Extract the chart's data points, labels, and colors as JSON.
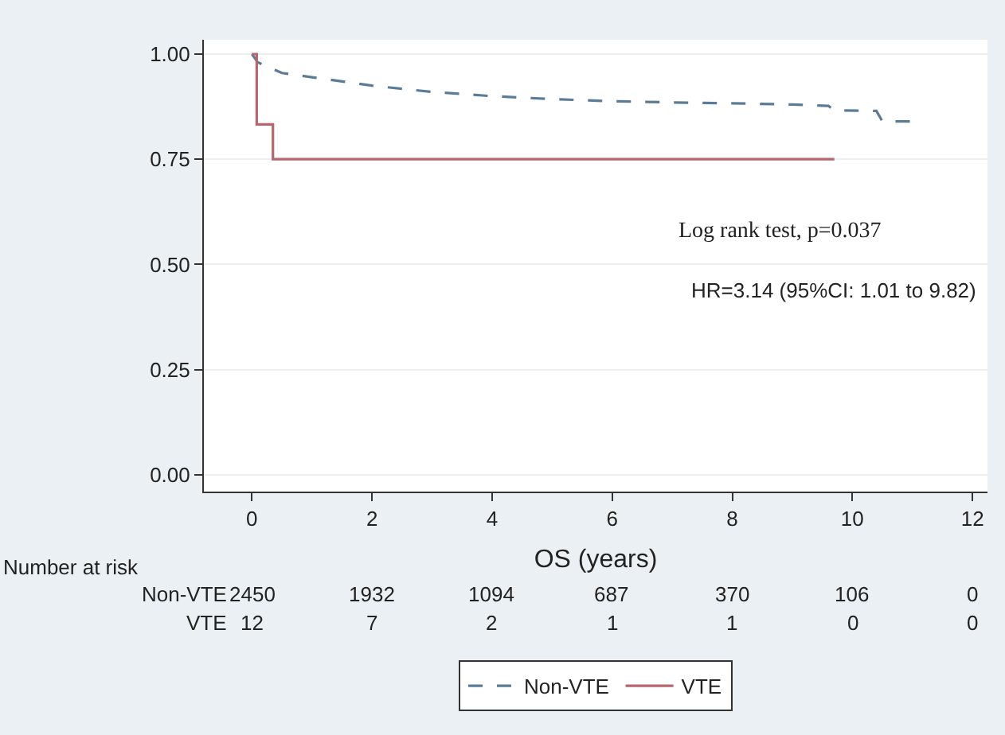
{
  "chart_data": {
    "type": "step",
    "xlabel": "OS (years)",
    "xlim": [
      -0.8,
      12.25
    ],
    "xticks": [
      0,
      2,
      4,
      6,
      8,
      10,
      12
    ],
    "ylim": [
      -0.04,
      1.034
    ],
    "yticks": [
      {
        "value": 0,
        "label": "0.00"
      },
      {
        "value": 0.25,
        "label": "0.25"
      },
      {
        "value": 0.5,
        "label": "0.50"
      },
      {
        "value": 0.75,
        "label": "0.75"
      },
      {
        "value": 1,
        "label": "1.00"
      }
    ],
    "grid": "y",
    "legend": "bottom",
    "marker": "none",
    "series": [
      {
        "name": "Non-VTE",
        "color": "#5b7c96",
        "line_style": "dashed",
        "type": "line",
        "x": [
          0,
          0.1,
          0.5,
          1,
          2,
          3,
          4,
          5,
          6,
          7,
          8,
          9,
          9.6,
          9.7,
          10.4,
          10.5,
          11
        ],
        "values": [
          1.0,
          0.98,
          0.955,
          0.945,
          0.925,
          0.91,
          0.9,
          0.893,
          0.888,
          0.885,
          0.883,
          0.88,
          0.877,
          0.866,
          0.865,
          0.84,
          0.84
        ]
      },
      {
        "name": "VTE",
        "color": "#b5666e",
        "line_style": "solid",
        "x": [
          0,
          0.08,
          0.35,
          9.7
        ],
        "values": [
          1.0,
          0.833,
          0.75,
          0.75
        ]
      }
    ],
    "annotations": [
      "Log rank test, p=0.037",
      "HR=3.14 (95%CI: 1.01 to 9.82)",
      "Number at risk",
      "Non-VTE",
      "2450",
      "1932",
      "1094",
      "687",
      "370",
      "106",
      "0",
      "VTE",
      "12",
      "7",
      "2",
      "1",
      "1",
      "0",
      "0"
    ]
  }
}
